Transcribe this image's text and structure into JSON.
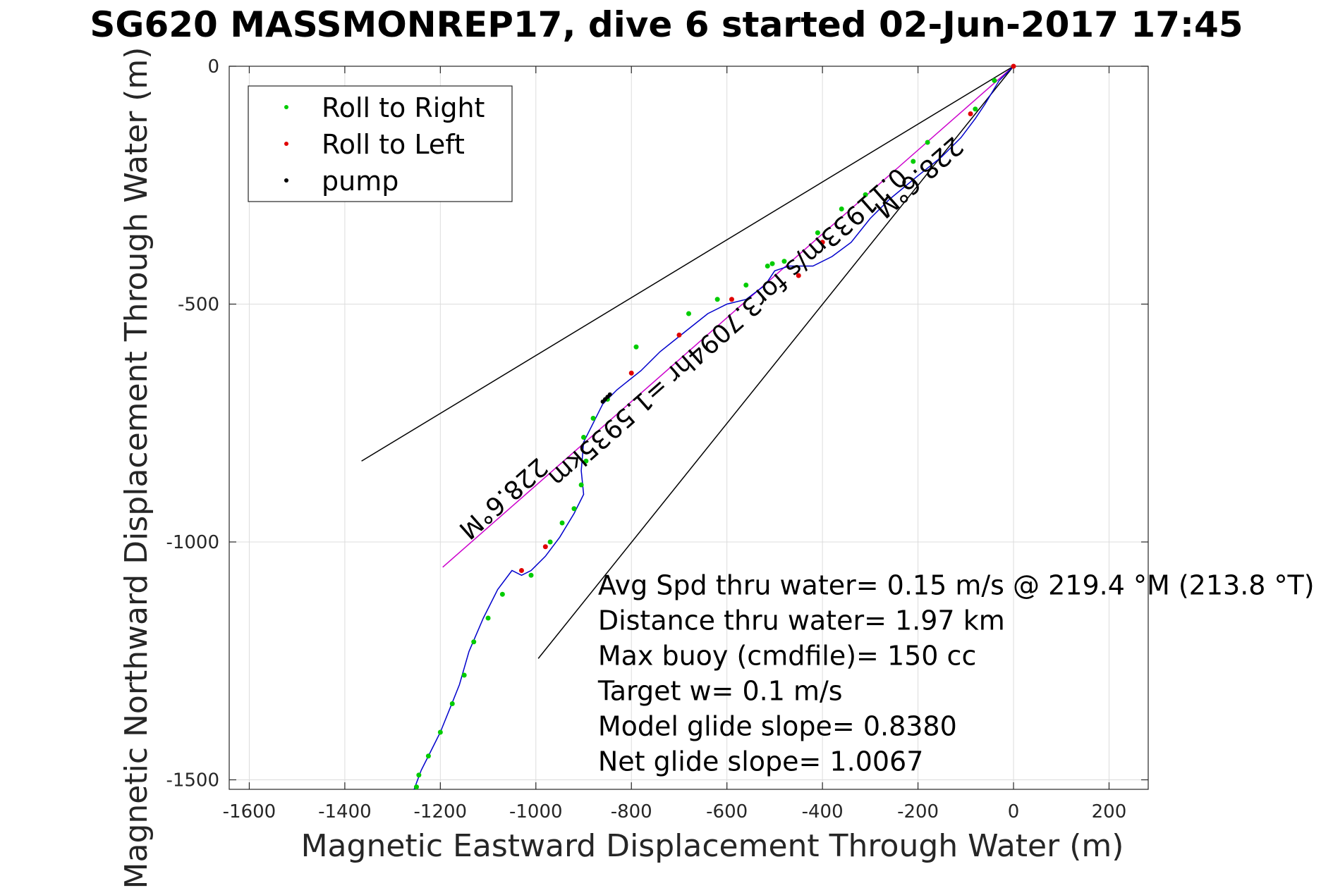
{
  "chart_data": {
    "type": "line",
    "title": "SG620 MASSMONREP17, dive 6 started 02-Jun-2017 17:45",
    "xlabel": "Magnetic Eastward Displacement Through Water (m)",
    "ylabel": "Magnetic Northward Displacement Through Water (m)",
    "xlim": [
      -1642,
      282
    ],
    "ylim": [
      -1520,
      0
    ],
    "x_ticks": [
      -1600,
      -1400,
      -1200,
      -1000,
      -800,
      -600,
      -400,
      -200,
      0,
      200
    ],
    "y_ticks": [
      0,
      -500,
      -1000,
      -1500
    ],
    "x_tick_labels": [
      "-1600",
      "-1400",
      "-1200",
      "-1000",
      "-800",
      "-600",
      "-400",
      "-200",
      "0",
      "200"
    ],
    "y_tick_labels": [
      "0",
      "-500",
      "-1000",
      "-1500"
    ],
    "grid": true,
    "legend": {
      "position": "top-left",
      "entries": [
        {
          "label": "Roll to Right",
          "color": "#00cc00"
        },
        {
          "label": "Roll to Left",
          "color": "#e00000"
        },
        {
          "label": "pump",
          "color": "#000000"
        }
      ]
    },
    "track": {
      "color": "#0000cc",
      "x": [
        0,
        -30,
        -60,
        -80,
        -110,
        -150,
        -200,
        -260,
        -300,
        -340,
        -380,
        -420,
        -470,
        -500,
        -520,
        -560,
        -600,
        -640,
        -690,
        -740,
        -780,
        -830,
        -860,
        -880,
        -900,
        -905,
        -900,
        -920,
        -950,
        -980,
        -1010,
        -1030,
        -1050,
        -1080,
        -1110,
        -1140,
        -1160,
        -1180,
        -1200,
        -1220,
        -1240,
        -1255
      ],
      "y": [
        0,
        -30,
        -80,
        -110,
        -150,
        -190,
        -230,
        -280,
        -320,
        -370,
        -400,
        -420,
        -420,
        -430,
        -460,
        -490,
        -500,
        -520,
        -560,
        -600,
        -640,
        -680,
        -710,
        -750,
        -790,
        -850,
        -900,
        -940,
        -990,
        -1030,
        -1060,
        -1070,
        -1060,
        -1100,
        -1160,
        -1230,
        -1300,
        -1350,
        -1400,
        -1440,
        -1480,
        -1520
      ]
    },
    "series": [
      {
        "name": "Roll to Right",
        "color": "#00cc00",
        "x": [
          -40,
          -80,
          -180,
          -210,
          -310,
          -360,
          -410,
          -480,
          -505,
          -515,
          -560,
          -620,
          -680,
          -790,
          -850,
          -880,
          -900,
          -895,
          -905,
          -920,
          -945,
          -970,
          -1010,
          -1070,
          -1100,
          -1130,
          -1150,
          -1175,
          -1200,
          -1225,
          -1245,
          -1250
        ],
        "y": [
          -30,
          -90,
          -160,
          -200,
          -270,
          -300,
          -350,
          -410,
          -415,
          -420,
          -460,
          -490,
          -520,
          -590,
          -700,
          -740,
          -780,
          -830,
          -880,
          -930,
          -960,
          -1000,
          -1070,
          -1110,
          -1160,
          -1210,
          -1280,
          -1340,
          -1400,
          -1450,
          -1490,
          -1515
        ]
      },
      {
        "name": "Roll to Left",
        "color": "#e00000",
        "x": [
          0,
          -90,
          -400,
          -450,
          -590,
          -700,
          -800,
          -980,
          -1030
        ],
        "y": [
          0,
          -100,
          -370,
          -440,
          -490,
          -565,
          -645,
          -1010,
          -1060
        ]
      },
      {
        "name": "pump",
        "color": "#000000",
        "x": [
          -845,
          -850,
          -855,
          -860
        ],
        "y": [
          -690,
          -695,
          -700,
          -705
        ]
      }
    ],
    "reference_lines": [
      {
        "name": "heading",
        "color": "#cc00cc",
        "x": [
          0,
          -1195
        ],
        "y": [
          0,
          -1053
        ]
      },
      {
        "name": "upper",
        "color": "#000000",
        "x": [
          0,
          -1365
        ],
        "y": [
          0,
          -830
        ]
      },
      {
        "name": "lower",
        "color": "#000000",
        "x": [
          0,
          -995
        ],
        "y": [
          0,
          -1245
        ]
      }
    ],
    "annotations": [
      {
        "text": "228.6°M",
        "x": -1080,
        "y": -895,
        "rotation": 180
      },
      {
        "text": "0.11933m/s for3.7094hr =1.5935km",
        "x": -610,
        "y": -535,
        "rotation": 180
      },
      {
        "text": "228.6°M",
        "x": -210,
        "y": -220,
        "rotation": 180
      }
    ],
    "text_box": {
      "x": -870,
      "y": -1110,
      "lines": [
        "Avg Spd thru water=  0.15 m/s @ 219.4 °M (213.8 °T)",
        "Distance thru water=  1.97 km",
        "Max buoy (cmdfile)= 150 cc",
        "Target w= 0.1 m/s",
        "Model glide slope= 0.8380",
        "Net glide slope= 1.0067"
      ]
    }
  }
}
